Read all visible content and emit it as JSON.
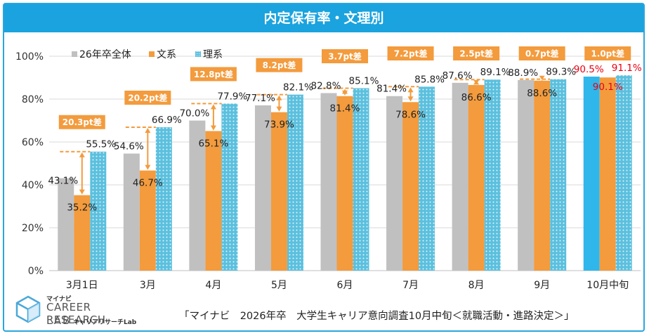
{
  "header": {
    "title": "内定保有率・文理別"
  },
  "logo": {
    "small": "マイナビ",
    "big": "CAREER RESEARCH",
    "lab": "LAB",
    "sub": "キャリアリサーチLab"
  },
  "source": "「マイナビ　2026年卒　大学生キャリア意向調査10月中旬＜就職活動・進路決定＞」",
  "colors": {
    "total": "#c0c0c0",
    "bunkei": "#f39b3d",
    "rikei": "#5bc0de",
    "highlight_total": "#2fb7ec",
    "gap_box": "#f39b3d",
    "red_label": "#e60012"
  },
  "chart_data": {
    "type": "bar",
    "categories": [
      "3月1日",
      "3月",
      "4月",
      "5月",
      "6月",
      "7月",
      "8月",
      "9月",
      "10月中旬"
    ],
    "series": [
      {
        "name": "26年卒全体",
        "values": [
          43.1,
          54.6,
          70.0,
          77.1,
          82.8,
          81.4,
          87.6,
          88.9,
          90.5
        ]
      },
      {
        "name": "文系",
        "values": [
          35.2,
          46.7,
          65.1,
          73.9,
          81.4,
          78.6,
          86.6,
          88.6,
          90.1
        ]
      },
      {
        "name": "理系",
        "values": [
          55.5,
          66.9,
          77.9,
          82.1,
          85.1,
          85.8,
          89.1,
          89.3,
          91.1
        ]
      }
    ],
    "value_labels": {
      "total": [
        "43.1%",
        "54.6%",
        "70.0%",
        "77.1%",
        "82.8%",
        "81.4%",
        "87.6%",
        "88.9%",
        "90.5%"
      ],
      "bunkei": [
        "35.2%",
        "46.7%",
        "65.1%",
        "73.9%",
        "81.4%",
        "78.6%",
        "86.6%",
        "88.6%",
        "90.1%"
      ],
      "rikei": [
        "55.5%",
        "66.9%",
        "77.9%",
        "82.1%",
        "85.1%",
        "85.8%",
        "89.1%",
        "89.3%",
        "91.1%"
      ]
    },
    "gaps": [
      "20.3pt差",
      "20.2pt差",
      "12.8pt差",
      "8.2pt差",
      "3.7pt差",
      "7.2pt差",
      "2.5pt差",
      "0.7pt差",
      "1.0pt差"
    ],
    "yticks": [
      "0%",
      "20%",
      "40%",
      "60%",
      "80%",
      "100%"
    ],
    "ytick_values": [
      0,
      20,
      40,
      60,
      80,
      100
    ],
    "ylim": [
      0,
      100
    ],
    "legend": [
      "26年卒全体",
      "文系",
      "理系"
    ],
    "legend_position": "top-left"
  }
}
